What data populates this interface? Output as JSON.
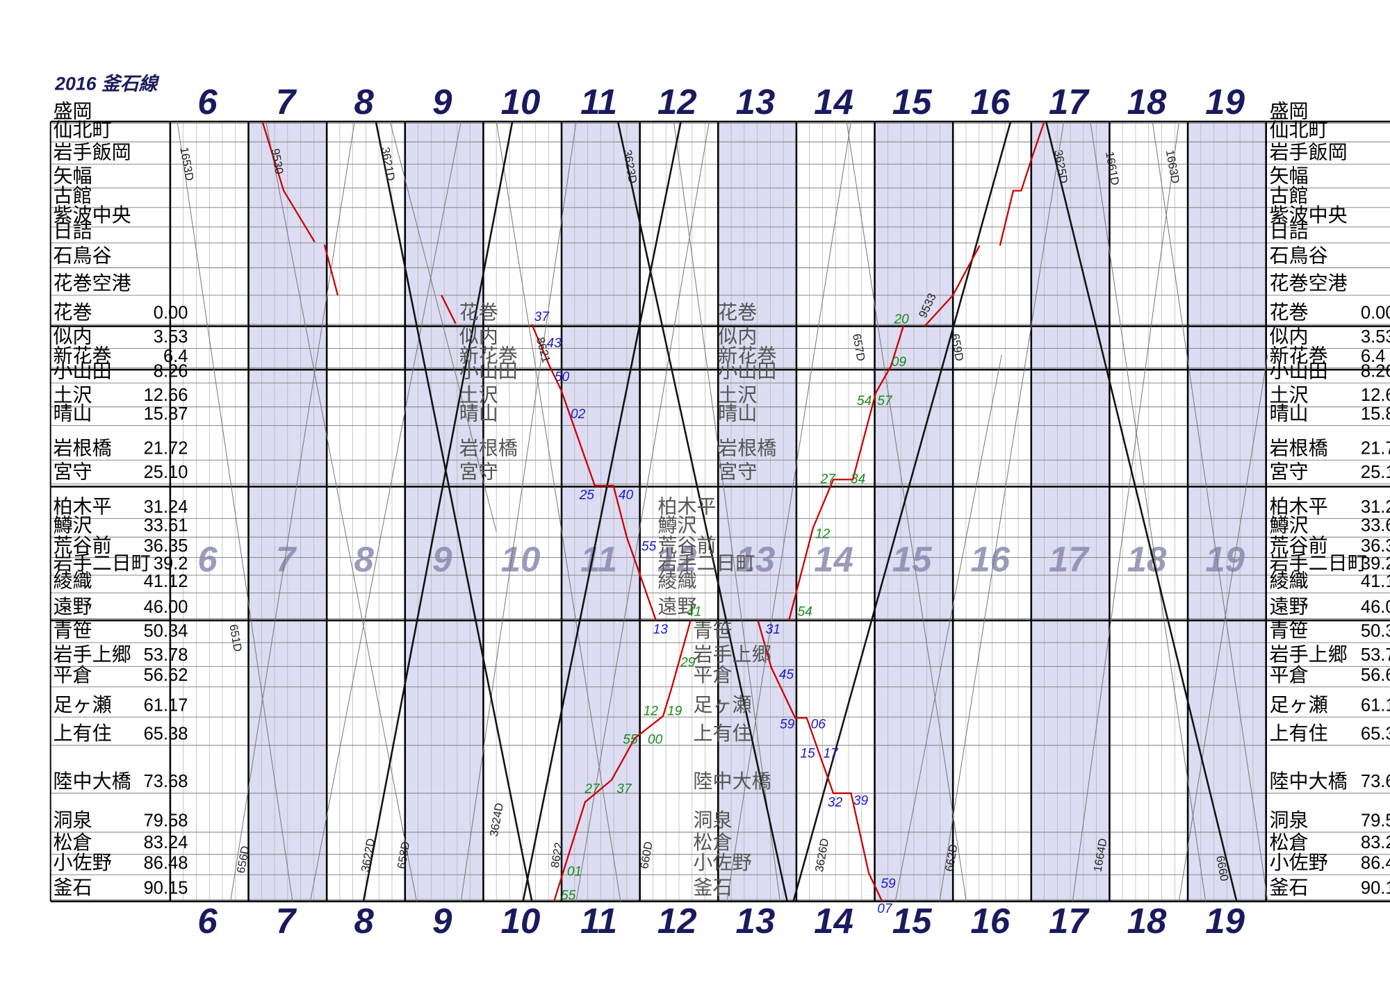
{
  "header": {
    "title": "2016 釜石線"
  },
  "hours": [
    "6",
    "7",
    "8",
    "9",
    "10",
    "11",
    "12",
    "13",
    "14",
    "15",
    "16",
    "17",
    "18",
    "19"
  ],
  "stations": [
    {
      "name": "盛岡"
    },
    {
      "name": "仙北町"
    },
    {
      "name": "岩手飯岡"
    },
    {
      "name": "矢幅"
    },
    {
      "name": "古館"
    },
    {
      "name": "紫波中央"
    },
    {
      "name": "日詰"
    },
    {
      "name": "石鳥谷"
    },
    {
      "name": "花巻空港"
    },
    {
      "name": "花巻",
      "km": "0.00"
    },
    {
      "name": "似内",
      "km": "3.53"
    },
    {
      "name": "新花巻",
      "km": "6.4"
    },
    {
      "name": "小山田",
      "km": "8.26"
    },
    {
      "name": "土沢",
      "km": "12.66"
    },
    {
      "name": "晴山",
      "km": "15.87"
    },
    {
      "name": "岩根橋",
      "km": "21.72"
    },
    {
      "name": "宮守",
      "km": "25.10"
    },
    {
      "name": "柏木平",
      "km": "31.24"
    },
    {
      "name": "鱒沢",
      "km": "33.61"
    },
    {
      "name": "荒谷前",
      "km": "36.35"
    },
    {
      "name": "岩手二日町",
      "km": "39.2"
    },
    {
      "name": "綾織",
      "km": "41.12"
    },
    {
      "name": "遠野",
      "km": "46.00"
    },
    {
      "name": "青笹",
      "km": "50.34"
    },
    {
      "name": "岩手上郷",
      "km": "53.78"
    },
    {
      "name": "平倉",
      "km": "56.62"
    },
    {
      "name": "足ヶ瀬",
      "km": "61.17"
    },
    {
      "name": "上有住",
      "km": "65.38"
    },
    {
      "name": "陸中大橋",
      "km": "73.68"
    },
    {
      "name": "洞泉",
      "km": "79.58"
    },
    {
      "name": "松倉",
      "km": "83.24"
    },
    {
      "name": "小佐野",
      "km": "86.48"
    },
    {
      "name": "釜石",
      "km": "90.15"
    }
  ],
  "trains": [
    {
      "label": "1653D"
    },
    {
      "label": "9530"
    },
    {
      "label": "3621D"
    },
    {
      "label": "3623D"
    },
    {
      "label": "3625D"
    },
    {
      "label": "1661D"
    },
    {
      "label": "1663D"
    },
    {
      "label": "651D"
    },
    {
      "label": "656D"
    },
    {
      "label": "3622D"
    },
    {
      "label": "658D"
    },
    {
      "label": "3624D"
    },
    {
      "label": "8622"
    },
    {
      "label": "660D"
    },
    {
      "label": "3626D"
    },
    {
      "label": "662D"
    },
    {
      "label": "1664D"
    },
    {
      "label": "6660"
    },
    {
      "label": "8621"
    },
    {
      "label": "657D"
    },
    {
      "label": "659D"
    },
    {
      "label": "9533"
    }
  ],
  "times": [
    {
      "text": "37",
      "color": "#1a1acc"
    },
    {
      "text": "43",
      "color": "#1a1acc"
    },
    {
      "text": "50",
      "color": "#1a1acc"
    },
    {
      "text": "02",
      "color": "#1a1acc"
    },
    {
      "text": "25",
      "color": "#1a1acc"
    },
    {
      "text": "40",
      "color": "#1a1acc"
    },
    {
      "text": "55",
      "color": "#1a1acc"
    },
    {
      "text": "13",
      "color": "#1a1acc"
    },
    {
      "text": "31",
      "color": "#1a1acc"
    },
    {
      "text": "45",
      "color": "#1a1acc"
    },
    {
      "text": "59",
      "color": "#1a1acc"
    },
    {
      "text": "06",
      "color": "#1a1acc"
    },
    {
      "text": "15",
      "color": "#1a1acc"
    },
    {
      "text": "17",
      "color": "#1a1acc"
    },
    {
      "text": "32",
      "color": "#1a1acc"
    },
    {
      "text": "39",
      "color": "#1a1acc"
    },
    {
      "text": "59",
      "color": "#1a1acc"
    },
    {
      "text": "07",
      "color": "#1a1acc"
    },
    {
      "text": "20",
      "color": "#1a8a1a"
    },
    {
      "text": "09",
      "color": "#1a8a1a"
    },
    {
      "text": "54",
      "color": "#1a8a1a"
    },
    {
      "text": "57",
      "color": "#1a8a1a"
    },
    {
      "text": "27",
      "color": "#1a8a1a"
    },
    {
      "text": "34",
      "color": "#1a8a1a"
    },
    {
      "text": "12",
      "color": "#1a8a1a"
    },
    {
      "text": "54",
      "color": "#1a8a1a"
    },
    {
      "text": "41",
      "color": "#1a8a1a"
    },
    {
      "text": "29",
      "color": "#1a8a1a"
    },
    {
      "text": "12",
      "color": "#1a8a1a"
    },
    {
      "text": "19",
      "color": "#1a8a1a"
    },
    {
      "text": "55",
      "color": "#1a8a1a"
    },
    {
      "text": "00",
      "color": "#1a8a1a"
    },
    {
      "text": "27",
      "color": "#1a8a1a"
    },
    {
      "text": "37",
      "color": "#1a8a1a"
    },
    {
      "text": "01",
      "color": "#1a8a1a"
    },
    {
      "text": "55",
      "color": "#1a8a1a"
    }
  ]
}
